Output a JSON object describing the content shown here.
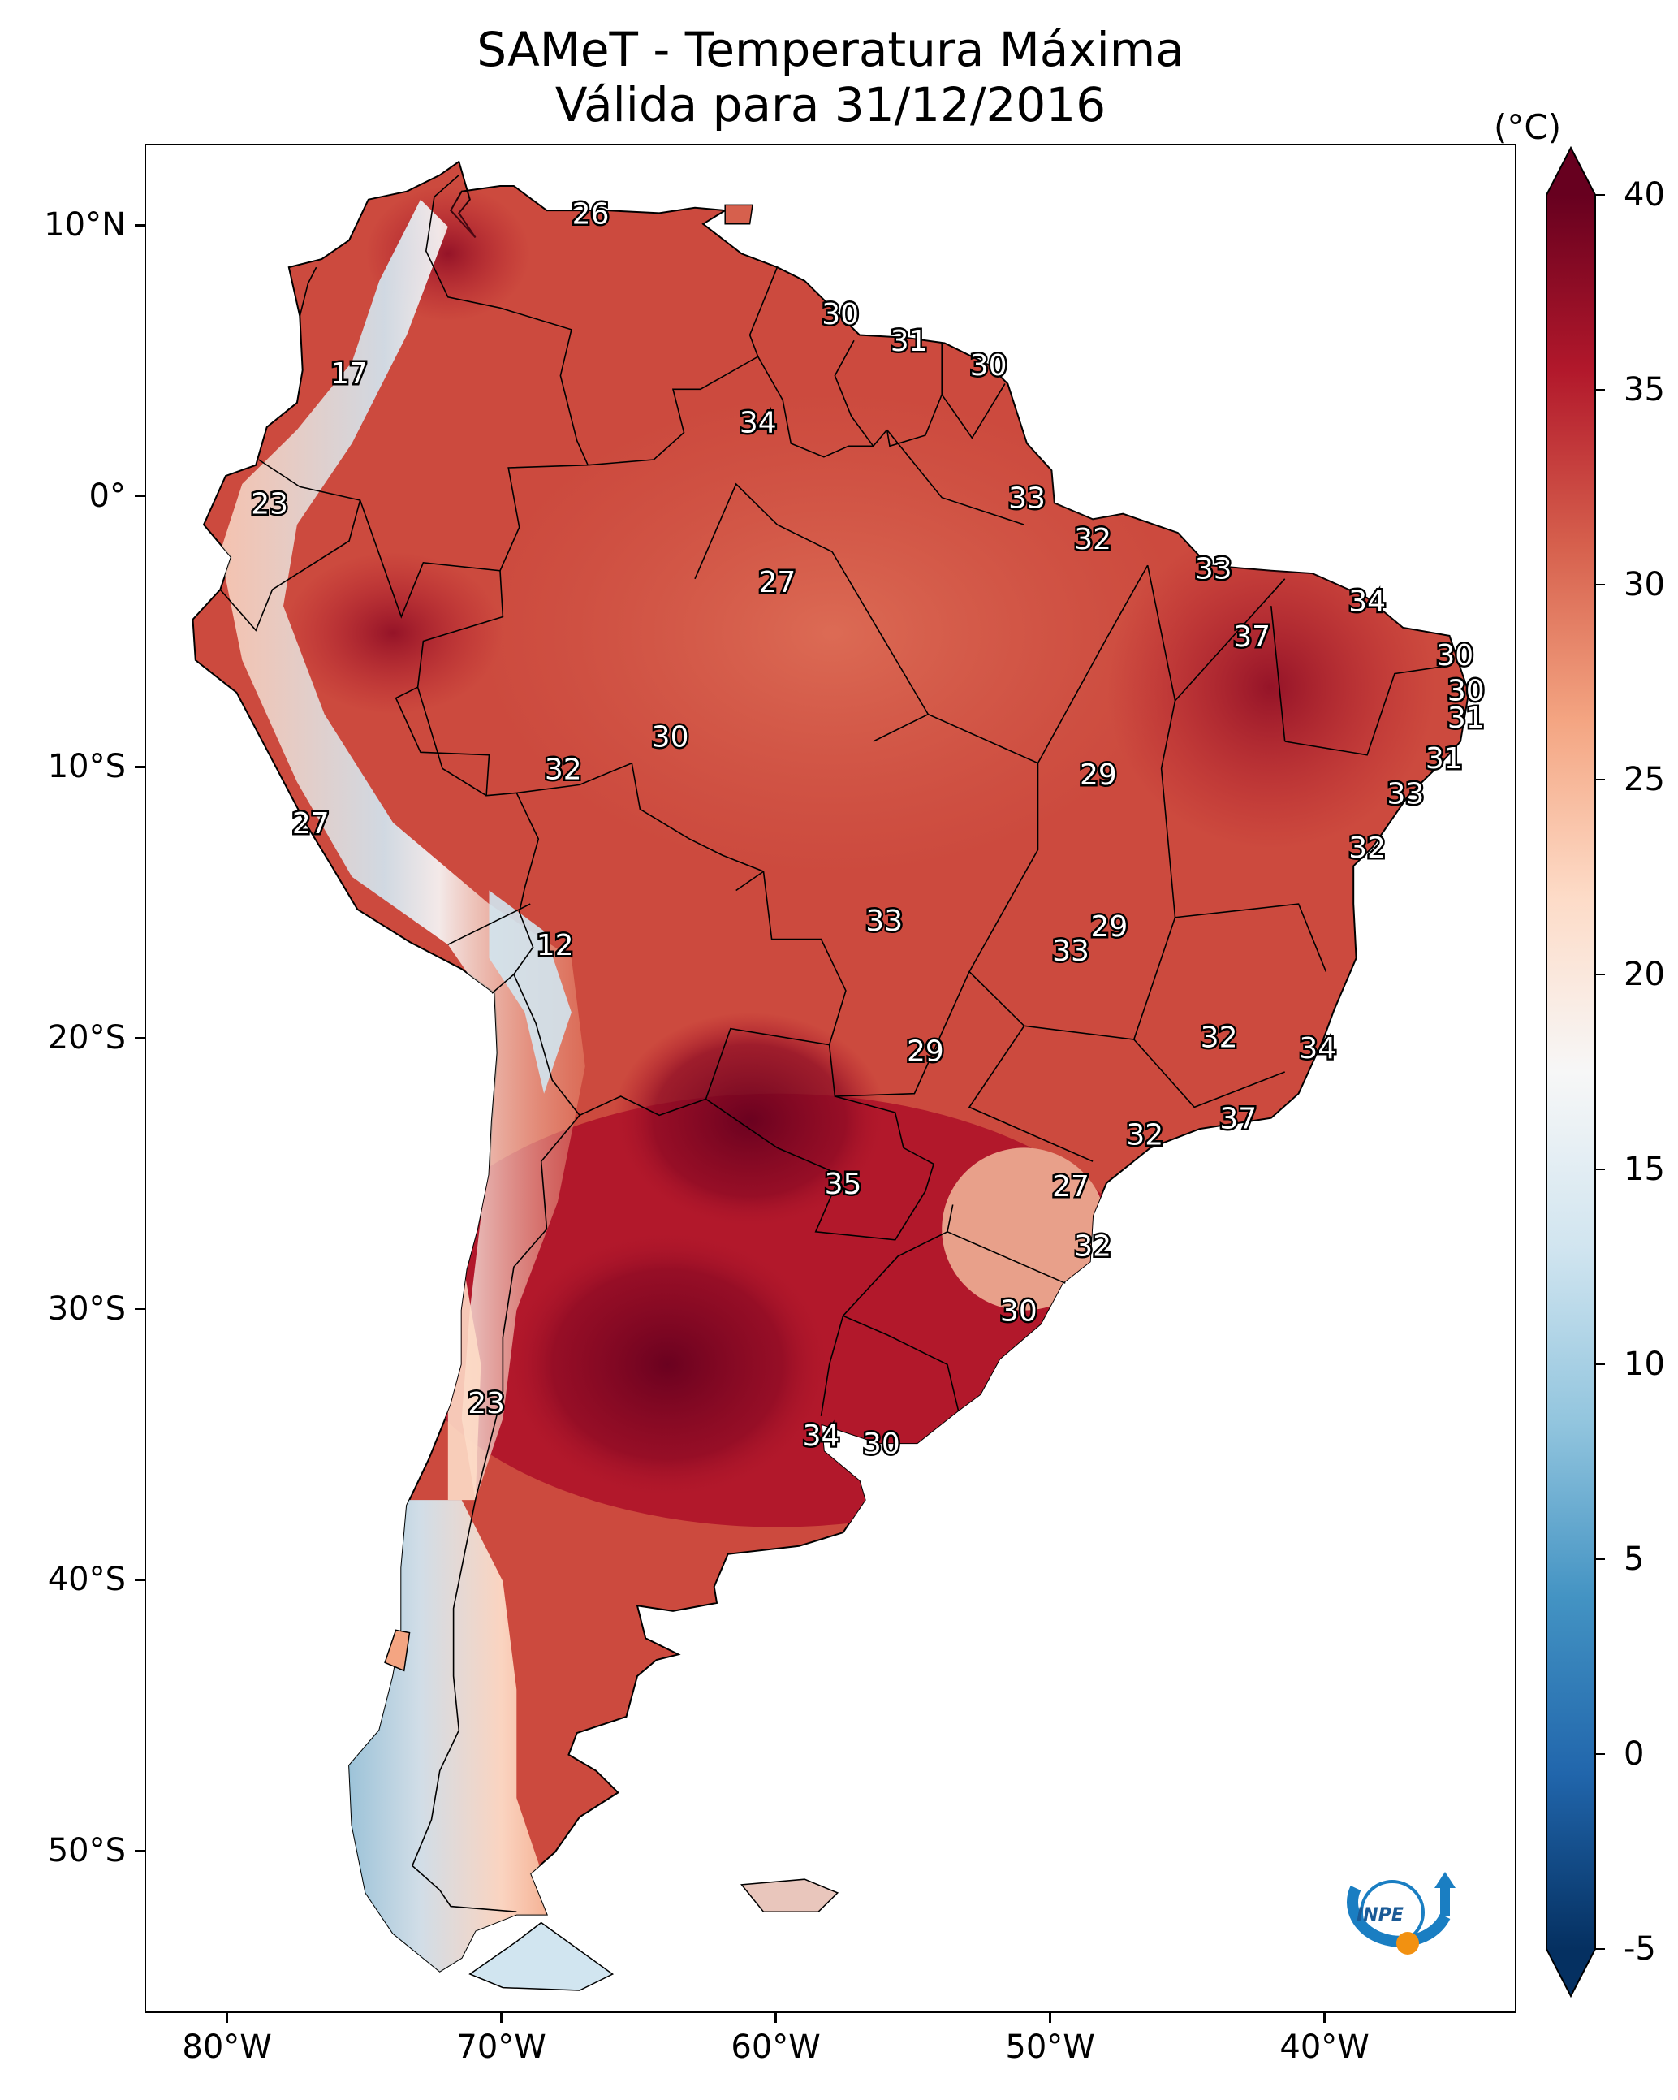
{
  "title": {
    "line1": "SAMeT - Temperatura Máxima",
    "line2": "Válida para 31/12/2016"
  },
  "map": {
    "region": "South America",
    "projection": "PlateCarree",
    "lon_range": [
      -83,
      -33
    ],
    "lat_range": [
      -56,
      13
    ],
    "lon_ticks": [
      {
        "value": -80,
        "label": "80°W"
      },
      {
        "value": -70,
        "label": "70°W"
      },
      {
        "value": -60,
        "label": "60°W"
      },
      {
        "value": -50,
        "label": "50°W"
      },
      {
        "value": -40,
        "label": "40°W"
      }
    ],
    "lat_ticks": [
      {
        "value": 10,
        "label": "10°N"
      },
      {
        "value": 0,
        "label": "0°"
      },
      {
        "value": -10,
        "label": "10°S"
      },
      {
        "value": -20,
        "label": "20°S"
      },
      {
        "value": -30,
        "label": "30°S"
      },
      {
        "value": -40,
        "label": "40°S"
      },
      {
        "value": -50,
        "label": "50°S"
      }
    ]
  },
  "colorbar": {
    "unit": "(°C)",
    "vmin": -5,
    "vmax": 40,
    "ticks": [
      "40",
      "35",
      "30",
      "25",
      "20",
      "15",
      "10",
      "5",
      "0",
      "-5"
    ],
    "colors": {
      "dark_red": "#67001f",
      "red": "#b2182b",
      "salmon": "#d6604d",
      "peach": "#f4a582",
      "pale": "#fddbc7",
      "white": "#f7f7f7",
      "pale_blue": "#d1e5f0",
      "light_blue": "#92c5de",
      "blue": "#4393c3",
      "mid_blue": "#2166ac",
      "navy": "#053061"
    }
  },
  "stations": [
    {
      "lon": -66.8,
      "lat": 10.5,
      "value": "26"
    },
    {
      "lon": -57.7,
      "lat": 6.8,
      "value": "30"
    },
    {
      "lon": -55.2,
      "lat": 5.8,
      "value": "31"
    },
    {
      "lon": -52.3,
      "lat": 4.9,
      "value": "30"
    },
    {
      "lon": -75.6,
      "lat": 4.6,
      "value": "17"
    },
    {
      "lon": -60.7,
      "lat": 2.8,
      "value": "34"
    },
    {
      "lon": -78.5,
      "lat": -0.2,
      "value": "23"
    },
    {
      "lon": -50.9,
      "lat": 0.0,
      "value": "33"
    },
    {
      "lon": -48.5,
      "lat": -1.5,
      "value": "32"
    },
    {
      "lon": -44.1,
      "lat": -2.6,
      "value": "33"
    },
    {
      "lon": -60.0,
      "lat": -3.1,
      "value": "27"
    },
    {
      "lon": -38.5,
      "lat": -3.8,
      "value": "34"
    },
    {
      "lon": -42.7,
      "lat": -5.1,
      "value": "37"
    },
    {
      "lon": -35.3,
      "lat": -5.8,
      "value": "30"
    },
    {
      "lon": -34.9,
      "lat": -7.1,
      "value": "30"
    },
    {
      "lon": -34.9,
      "lat": -8.1,
      "value": "31"
    },
    {
      "lon": -63.9,
      "lat": -8.8,
      "value": "30"
    },
    {
      "lon": -35.7,
      "lat": -9.6,
      "value": "31"
    },
    {
      "lon": -67.8,
      "lat": -10.0,
      "value": "32"
    },
    {
      "lon": -48.3,
      "lat": -10.2,
      "value": "29"
    },
    {
      "lon": -37.1,
      "lat": -10.9,
      "value": "33"
    },
    {
      "lon": -77.0,
      "lat": -12.0,
      "value": "27"
    },
    {
      "lon": -38.5,
      "lat": -12.9,
      "value": "32"
    },
    {
      "lon": -56.1,
      "lat": -15.6,
      "value": "33"
    },
    {
      "lon": -47.9,
      "lat": -15.8,
      "value": "29"
    },
    {
      "lon": -49.3,
      "lat": -16.7,
      "value": "33"
    },
    {
      "lon": -68.1,
      "lat": -16.5,
      "value": "12"
    },
    {
      "lon": -43.9,
      "lat": -19.9,
      "value": "32"
    },
    {
      "lon": -40.3,
      "lat": -20.3,
      "value": "34"
    },
    {
      "lon": -54.6,
      "lat": -20.4,
      "value": "29"
    },
    {
      "lon": -43.2,
      "lat": -22.9,
      "value": "37"
    },
    {
      "lon": -46.6,
      "lat": -23.5,
      "value": "32"
    },
    {
      "lon": -57.6,
      "lat": -25.3,
      "value": "35"
    },
    {
      "lon": -49.3,
      "lat": -25.4,
      "value": "27"
    },
    {
      "lon": -48.5,
      "lat": -27.6,
      "value": "32"
    },
    {
      "lon": -51.2,
      "lat": -30.0,
      "value": "30"
    },
    {
      "lon": -70.6,
      "lat": -33.4,
      "value": "23"
    },
    {
      "lon": -58.4,
      "lat": -34.6,
      "value": "34"
    },
    {
      "lon": -56.2,
      "lat": -34.9,
      "value": "30"
    }
  ],
  "logo": {
    "text": "INPE"
  }
}
